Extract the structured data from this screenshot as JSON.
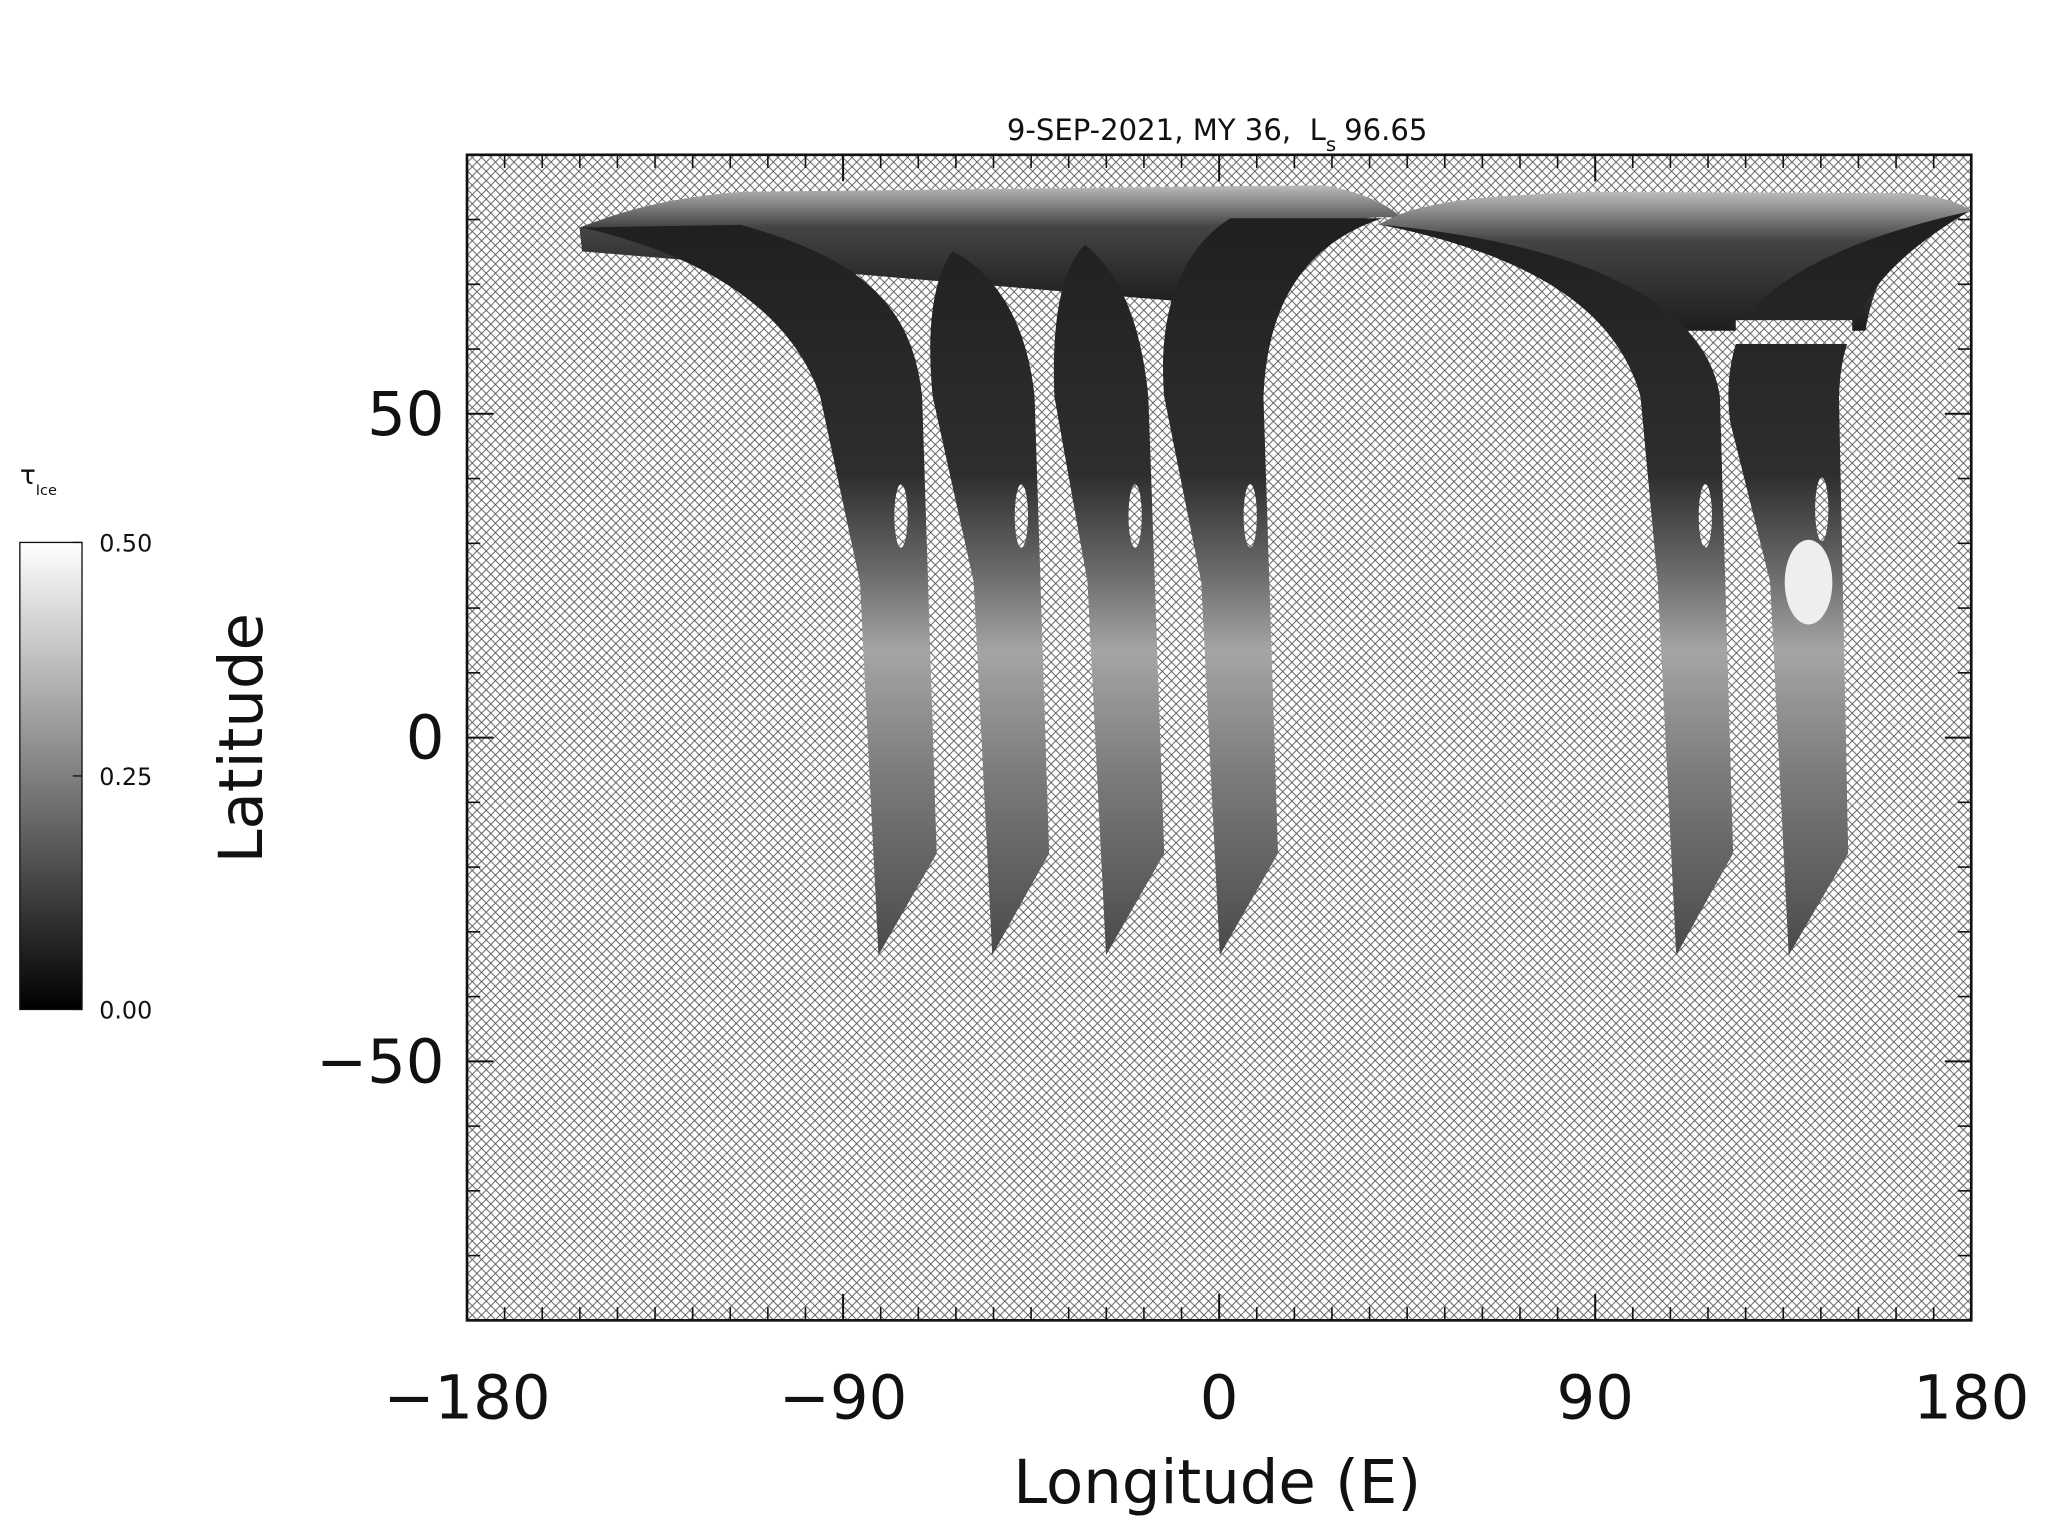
{
  "chart_data": {
    "type": "map",
    "title": "9-SEP-2021, MY 36,",
    "title_ls_symbol": "L",
    "title_ls_subscript": "s",
    "title_ls_value": "96.65",
    "xlabel": "Longitude (E)",
    "ylabel": "Latitude",
    "xlim": [
      -180,
      180
    ],
    "xticks": [
      {
        "value": -180,
        "label": "−180"
      },
      {
        "value": -90,
        "label": "−90"
      },
      0,
      90,
      180
    ],
    "x_minor_intervals": 10,
    "ylim": [
      -90,
      90
    ],
    "yticks": [
      {
        "value": -50,
        "label": "−50"
      },
      0,
      50
    ],
    "y_minor_intervals": 5,
    "colorbar": {
      "label": "τ",
      "label_subscript": "Ice",
      "lim": [
        0,
        0.5
      ],
      "ticks": [
        {
          "value": 0,
          "label": "0.00"
        },
        {
          "value": 0.25,
          "label": "0.25"
        },
        {
          "value": 0.5,
          "label": "0.50"
        }
      ],
      "colors": [
        "#000000",
        "#ffffff"
      ]
    }
  }
}
